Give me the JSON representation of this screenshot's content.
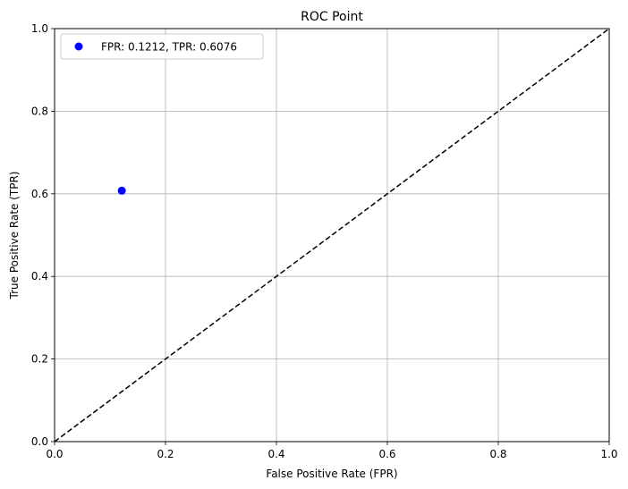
{
  "chart_data": {
    "type": "scatter",
    "title": "ROC Point",
    "xlabel": "False Positive Rate (FPR)",
    "ylabel": "True Positive Rate (TPR)",
    "xlim": [
      0.0,
      1.0
    ],
    "ylim": [
      0.0,
      1.0
    ],
    "xticks": [
      "0.0",
      "0.2",
      "0.4",
      "0.6",
      "0.8",
      "1.0"
    ],
    "yticks": [
      "0.0",
      "0.2",
      "0.4",
      "0.6",
      "0.8",
      "1.0"
    ],
    "grid": true,
    "legend_position": "top-left",
    "series": [
      {
        "name": "FPR: 0.1212, TPR: 0.6076",
        "type": "scatter",
        "color": "#0000ff",
        "x": [
          0.1212
        ],
        "y": [
          0.6076
        ]
      }
    ],
    "reference_line": {
      "style": "dashed",
      "color": "#000000",
      "x": [
        0.0,
        1.0
      ],
      "y": [
        0.0,
        1.0
      ]
    }
  }
}
